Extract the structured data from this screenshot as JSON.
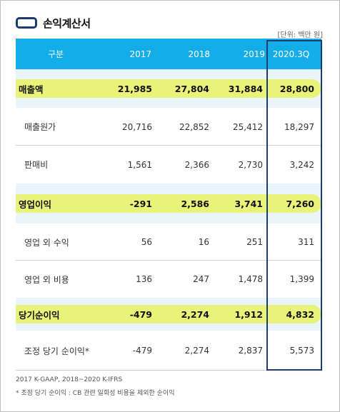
{
  "title": "손익계산서",
  "unit": "[단위: 백만 원]",
  "columns": [
    "구분",
    "2017",
    "2018",
    "2019",
    "2020.3Q"
  ],
  "rows": [
    {
      "label": "매출액",
      "values": [
        "21,985",
        "27,804",
        "31,884",
        "28,800"
      ],
      "style": "highlight"
    },
    {
      "label": "매출원가",
      "values": [
        "20,716",
        "22,852",
        "25,412",
        "18,297"
      ],
      "style": "normal"
    },
    {
      "label": "판매비",
      "values": [
        "1,561",
        "2,366",
        "2,730",
        "3,242"
      ],
      "style": "normal"
    },
    {
      "label": "영업이익",
      "values": [
        "-291",
        "2,586",
        "3,741",
        "7,260"
      ],
      "style": "highlight"
    },
    {
      "label": "영업 외 수익",
      "values": [
        "56",
        "16",
        "251",
        "311"
      ],
      "style": "normal"
    },
    {
      "label": "영업 외 비용",
      "values": [
        "136",
        "247",
        "1,478",
        "1,399"
      ],
      "style": "normal"
    },
    {
      "label": "당기순이익",
      "values": [
        "-479",
        "2,274",
        "1,912",
        "4,832"
      ],
      "style": "highlight"
    },
    {
      "label": "조정 당기 순이익*",
      "values": [
        "-479",
        "2,274",
        "2,837",
        "5,573"
      ],
      "style": "normal"
    }
  ],
  "notes": [
    "2017 K-GAAP, 2018~2020 K-IFRS",
    "* 조정 당기 순이익 : CB 관련 일회성 비용을 제외한 순이익"
  ],
  "colors": {
    "header_bg": "#13aeea",
    "highlight": "#e9f37a",
    "tint_row": "#e9f4fb",
    "box_border": "#1d3b6e"
  }
}
